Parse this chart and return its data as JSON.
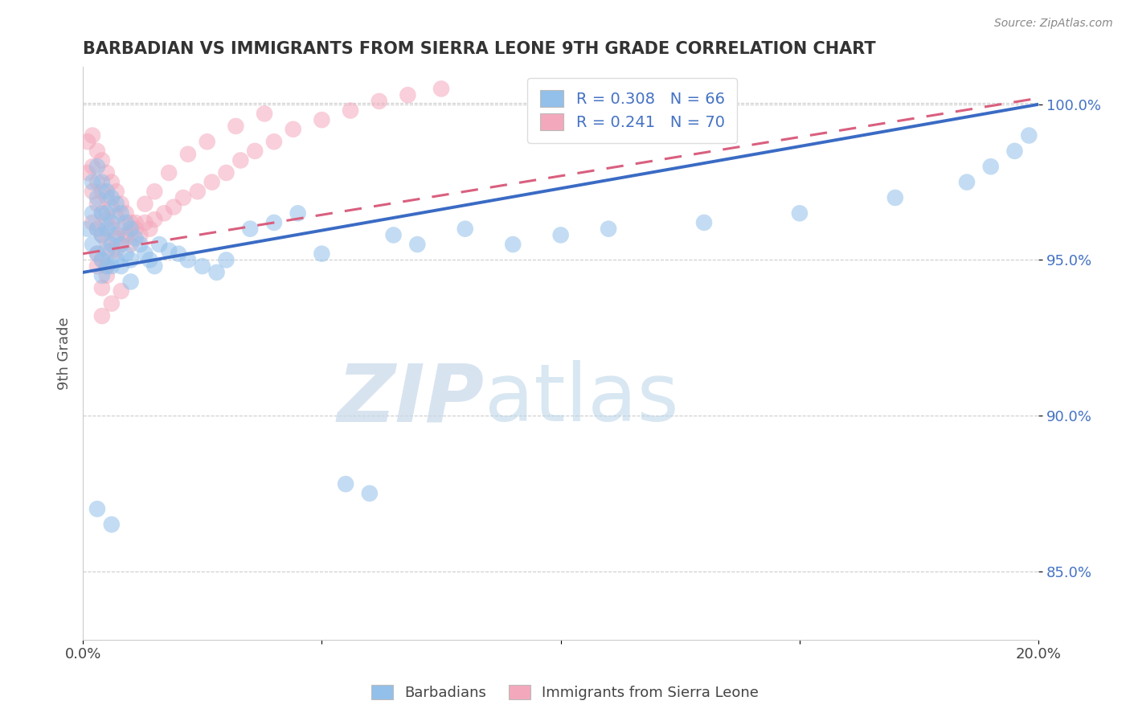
{
  "title": "BARBADIAN VS IMMIGRANTS FROM SIERRA LEONE 9TH GRADE CORRELATION CHART",
  "source_text": "Source: ZipAtlas.com",
  "ylabel": "9th Grade",
  "x_min": 0.0,
  "x_max": 0.2,
  "y_min": 0.828,
  "y_max": 1.012,
  "y_ticks": [
    0.85,
    0.9,
    0.95,
    1.0
  ],
  "y_tick_labels": [
    "85.0%",
    "90.0%",
    "95.0%",
    "100.0%"
  ],
  "blue_R": 0.308,
  "blue_N": 66,
  "pink_R": 0.241,
  "pink_N": 70,
  "blue_color": "#92C0EA",
  "pink_color": "#F4A8BC",
  "blue_line_color": "#3A6BC4",
  "pink_line_color": "#D95F7F",
  "watermark_zip": "ZIP",
  "watermark_atlas": "atlas",
  "legend_label_blue": "Barbadians",
  "legend_label_pink": "Immigrants from Sierra Leone",
  "blue_x": [
    0.001,
    0.002,
    0.002,
    0.002,
    0.003,
    0.003,
    0.003,
    0.003,
    0.004,
    0.004,
    0.004,
    0.004,
    0.004,
    0.005,
    0.005,
    0.005,
    0.005,
    0.005,
    0.006,
    0.006,
    0.006,
    0.006,
    0.007,
    0.007,
    0.007,
    0.008,
    0.008,
    0.008,
    0.009,
    0.009,
    0.01,
    0.01,
    0.01,
    0.011,
    0.012,
    0.013,
    0.014,
    0.015,
    0.016,
    0.018,
    0.02,
    0.022,
    0.025,
    0.028,
    0.03,
    0.035,
    0.04,
    0.045,
    0.05,
    0.055,
    0.06,
    0.065,
    0.07,
    0.08,
    0.09,
    0.1,
    0.11,
    0.13,
    0.15,
    0.17,
    0.185,
    0.19,
    0.195,
    0.198,
    0.003,
    0.006
  ],
  "blue_y": [
    0.96,
    0.975,
    0.965,
    0.955,
    0.98,
    0.97,
    0.96,
    0.952,
    0.975,
    0.965,
    0.958,
    0.95,
    0.945,
    0.972,
    0.965,
    0.96,
    0.953,
    0.948,
    0.97,
    0.962,
    0.955,
    0.948,
    0.968,
    0.958,
    0.95,
    0.965,
    0.955,
    0.948,
    0.962,
    0.952,
    0.96,
    0.95,
    0.943,
    0.957,
    0.955,
    0.952,
    0.95,
    0.948,
    0.955,
    0.953,
    0.952,
    0.95,
    0.948,
    0.946,
    0.95,
    0.96,
    0.962,
    0.965,
    0.952,
    0.878,
    0.875,
    0.958,
    0.955,
    0.96,
    0.955,
    0.958,
    0.96,
    0.962,
    0.965,
    0.97,
    0.975,
    0.98,
    0.985,
    0.99,
    0.87,
    0.865
  ],
  "pink_x": [
    0.001,
    0.001,
    0.002,
    0.002,
    0.002,
    0.002,
    0.003,
    0.003,
    0.003,
    0.003,
    0.003,
    0.004,
    0.004,
    0.004,
    0.004,
    0.004,
    0.005,
    0.005,
    0.005,
    0.005,
    0.005,
    0.006,
    0.006,
    0.006,
    0.006,
    0.007,
    0.007,
    0.007,
    0.008,
    0.008,
    0.009,
    0.009,
    0.01,
    0.01,
    0.011,
    0.012,
    0.013,
    0.014,
    0.015,
    0.017,
    0.019,
    0.021,
    0.024,
    0.027,
    0.03,
    0.033,
    0.036,
    0.04,
    0.044,
    0.05,
    0.056,
    0.062,
    0.068,
    0.075,
    0.003,
    0.005,
    0.007,
    0.009,
    0.011,
    0.013,
    0.015,
    0.018,
    0.022,
    0.026,
    0.032,
    0.038,
    0.004,
    0.004,
    0.006,
    0.008
  ],
  "pink_y": [
    0.988,
    0.978,
    0.99,
    0.98,
    0.972,
    0.962,
    0.985,
    0.975,
    0.968,
    0.96,
    0.952,
    0.982,
    0.972,
    0.965,
    0.958,
    0.95,
    0.978,
    0.97,
    0.963,
    0.956,
    0.948,
    0.975,
    0.967,
    0.96,
    0.953,
    0.972,
    0.964,
    0.957,
    0.968,
    0.96,
    0.965,
    0.957,
    0.962,
    0.955,
    0.96,
    0.958,
    0.962,
    0.96,
    0.963,
    0.965,
    0.967,
    0.97,
    0.972,
    0.975,
    0.978,
    0.982,
    0.985,
    0.988,
    0.992,
    0.995,
    0.998,
    1.001,
    1.003,
    1.005,
    0.948,
    0.945,
    0.953,
    0.958,
    0.962,
    0.968,
    0.972,
    0.978,
    0.984,
    0.988,
    0.993,
    0.997,
    0.941,
    0.932,
    0.936,
    0.94
  ]
}
